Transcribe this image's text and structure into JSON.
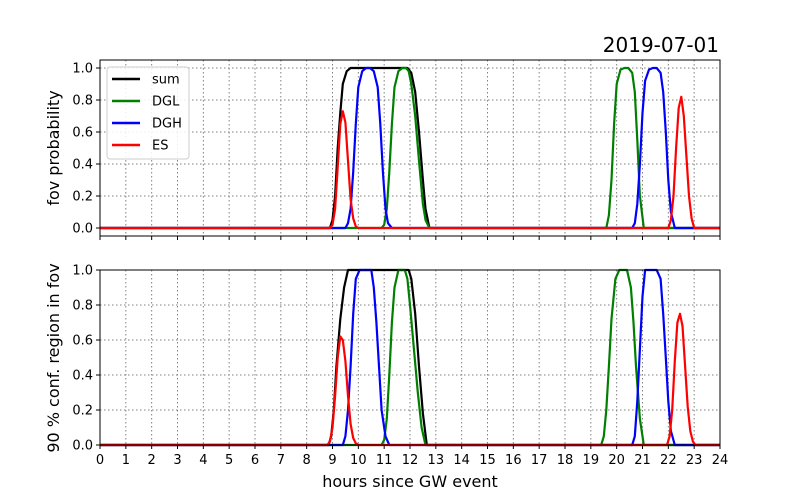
{
  "title": "2019-07-01",
  "xlabel": "hours since GW event",
  "chart_data": [
    {
      "type": "line",
      "ylabel": "fov probability",
      "xlim": [
        0,
        24
      ],
      "ylim": [
        -0.05,
        1.05
      ],
      "x_ticks": [
        0,
        1,
        2,
        3,
        4,
        5,
        6,
        7,
        8,
        9,
        10,
        11,
        12,
        13,
        14,
        15,
        16,
        17,
        18,
        19,
        20,
        21,
        22,
        23,
        24
      ],
      "y_ticks": [
        "0.0",
        "0.2",
        "0.4",
        "0.6",
        "0.8",
        "1.0"
      ],
      "grid": true,
      "legend": "upper-left",
      "series": [
        {
          "name": "sum",
          "color": "#000000",
          "x": [
            0,
            8.9,
            9.0,
            9.1,
            9.2,
            9.3,
            9.4,
            9.55,
            9.7,
            9.85,
            10.0,
            11.9,
            12.05,
            12.2,
            12.35,
            12.5,
            12.6,
            12.75,
            24
          ],
          "y": [
            0,
            0,
            0.05,
            0.2,
            0.5,
            0.72,
            0.9,
            0.98,
            1.0,
            1.0,
            1.0,
            1.0,
            0.97,
            0.85,
            0.6,
            0.3,
            0.12,
            0,
            0
          ]
        },
        {
          "name": "DGL",
          "color": "#008000",
          "x": [
            0,
            10.9,
            11.0,
            11.1,
            11.2,
            11.3,
            11.4,
            11.55,
            11.7,
            11.85,
            11.95,
            12.05,
            12.2,
            12.35,
            12.5,
            12.6,
            12.75,
            19.6,
            19.7,
            19.8,
            19.9,
            20.0,
            20.15,
            20.3,
            20.45,
            20.6,
            20.7,
            20.8,
            20.9,
            21.05,
            24
          ],
          "y": [
            0,
            0,
            0.02,
            0.12,
            0.35,
            0.65,
            0.88,
            0.98,
            1.0,
            1.0,
            0.98,
            0.9,
            0.7,
            0.42,
            0.15,
            0.05,
            0,
            0,
            0.08,
            0.3,
            0.65,
            0.9,
            0.99,
            1.0,
            1.0,
            0.97,
            0.85,
            0.55,
            0.2,
            0,
            0
          ]
        },
        {
          "name": "DGH",
          "color": "#0000ff",
          "x": [
            0,
            9.5,
            9.6,
            9.7,
            9.8,
            9.9,
            10.0,
            10.15,
            10.3,
            10.45,
            10.6,
            10.75,
            10.85,
            10.95,
            11.05,
            11.15,
            11.3,
            20.6,
            20.7,
            20.8,
            20.9,
            21.0,
            21.1,
            21.25,
            21.4,
            21.55,
            21.7,
            21.8,
            21.9,
            22.0,
            22.1,
            22.25,
            24
          ],
          "y": [
            0,
            0,
            0.03,
            0.12,
            0.35,
            0.65,
            0.88,
            0.98,
            1.0,
            1.0,
            0.98,
            0.88,
            0.65,
            0.35,
            0.12,
            0.03,
            0,
            0,
            0.03,
            0.15,
            0.4,
            0.72,
            0.92,
            0.99,
            1.0,
            1.0,
            0.97,
            0.85,
            0.6,
            0.3,
            0.1,
            0,
            0
          ]
        },
        {
          "name": "ES",
          "color": "#ff0000",
          "x": [
            0,
            8.9,
            9.0,
            9.1,
            9.2,
            9.3,
            9.4,
            9.5,
            9.6,
            9.7,
            9.8,
            9.9,
            10.0,
            22.0,
            22.1,
            22.2,
            22.3,
            22.4,
            22.5,
            22.6,
            22.7,
            22.8,
            22.9,
            23.0,
            24
          ],
          "y": [
            0,
            0,
            0.02,
            0.12,
            0.38,
            0.65,
            0.73,
            0.66,
            0.42,
            0.18,
            0.06,
            0.01,
            0,
            0,
            0.05,
            0.2,
            0.5,
            0.75,
            0.82,
            0.7,
            0.45,
            0.2,
            0.06,
            0,
            0
          ]
        }
      ]
    },
    {
      "type": "line",
      "ylabel": "90 % conf. region in fov",
      "xlim": [
        0,
        24
      ],
      "ylim": [
        0,
        1
      ],
      "x_ticks": [
        0,
        1,
        2,
        3,
        4,
        5,
        6,
        7,
        8,
        9,
        10,
        11,
        12,
        13,
        14,
        15,
        16,
        17,
        18,
        19,
        20,
        21,
        22,
        23,
        24
      ],
      "x_tick_labels": [
        "0",
        "1",
        "2",
        "3",
        "4",
        "5",
        "6",
        "7",
        "8",
        "9",
        "10",
        "11",
        "12",
        "13",
        "14",
        "15",
        "16",
        "17",
        "18",
        "19",
        "20",
        "21",
        "22",
        "23",
        "24"
      ],
      "y_ticks": [
        "0.0",
        "0.2",
        "0.4",
        "0.6",
        "0.8",
        "1.0"
      ],
      "grid": true,
      "series": [
        {
          "name": "sum",
          "color": "#000000",
          "x": [
            0,
            8.85,
            8.95,
            9.05,
            9.15,
            9.3,
            9.45,
            9.6,
            9.75,
            9.85,
            11.95,
            12.05,
            12.2,
            12.35,
            12.5,
            12.65,
            24
          ],
          "y": [
            0,
            0,
            0.05,
            0.2,
            0.45,
            0.72,
            0.9,
            1.0,
            1.0,
            1.0,
            1.0,
            0.95,
            0.75,
            0.45,
            0.18,
            0,
            0
          ]
        },
        {
          "name": "DGL",
          "color": "#008000",
          "x": [
            0,
            10.9,
            11.0,
            11.1,
            11.2,
            11.3,
            11.4,
            11.55,
            11.7,
            11.8,
            11.9,
            12.0,
            12.15,
            12.3,
            12.45,
            12.6,
            19.4,
            19.5,
            19.6,
            19.7,
            19.8,
            19.95,
            20.1,
            20.25,
            20.4,
            20.55,
            20.65,
            20.75,
            20.9,
            21.05,
            24
          ],
          "y": [
            0,
            0,
            0.03,
            0.15,
            0.4,
            0.7,
            0.9,
            1.0,
            1.0,
            1.0,
            0.95,
            0.8,
            0.55,
            0.3,
            0.1,
            0,
            0,
            0.05,
            0.2,
            0.45,
            0.72,
            0.95,
            1.0,
            1.0,
            1.0,
            0.9,
            0.7,
            0.45,
            0.15,
            0,
            0
          ]
        },
        {
          "name": "DGH",
          "color": "#0000ff",
          "x": [
            0,
            9.4,
            9.5,
            9.6,
            9.7,
            9.8,
            9.9,
            10.05,
            10.2,
            10.35,
            10.5,
            10.6,
            10.7,
            10.8,
            10.9,
            11.05,
            11.2,
            20.6,
            20.7,
            20.8,
            20.9,
            21.0,
            21.1,
            21.25,
            21.4,
            21.55,
            21.7,
            21.8,
            21.9,
            22.0,
            22.1,
            22.25,
            24
          ],
          "y": [
            0,
            0,
            0.05,
            0.2,
            0.45,
            0.75,
            0.95,
            1.0,
            1.0,
            1.0,
            1.0,
            0.9,
            0.7,
            0.45,
            0.2,
            0.05,
            0,
            0,
            0.05,
            0.25,
            0.55,
            0.85,
            1.0,
            1.0,
            1.0,
            1.0,
            0.95,
            0.75,
            0.5,
            0.25,
            0.08,
            0,
            0
          ]
        },
        {
          "name": "ES",
          "color": "#ff0000",
          "x": [
            0,
            8.8,
            8.9,
            9.0,
            9.1,
            9.2,
            9.3,
            9.4,
            9.5,
            9.6,
            9.7,
            9.8,
            9.9,
            10.0,
            21.95,
            22.05,
            22.15,
            22.25,
            22.35,
            22.45,
            22.55,
            22.65,
            22.75,
            22.85,
            22.95,
            23.05,
            24
          ],
          "y": [
            0,
            0,
            0.02,
            0.1,
            0.28,
            0.5,
            0.62,
            0.6,
            0.48,
            0.28,
            0.12,
            0.04,
            0.01,
            0,
            0,
            0.05,
            0.2,
            0.48,
            0.7,
            0.75,
            0.68,
            0.45,
            0.22,
            0.08,
            0.02,
            0,
            0
          ]
        }
      ]
    }
  ]
}
